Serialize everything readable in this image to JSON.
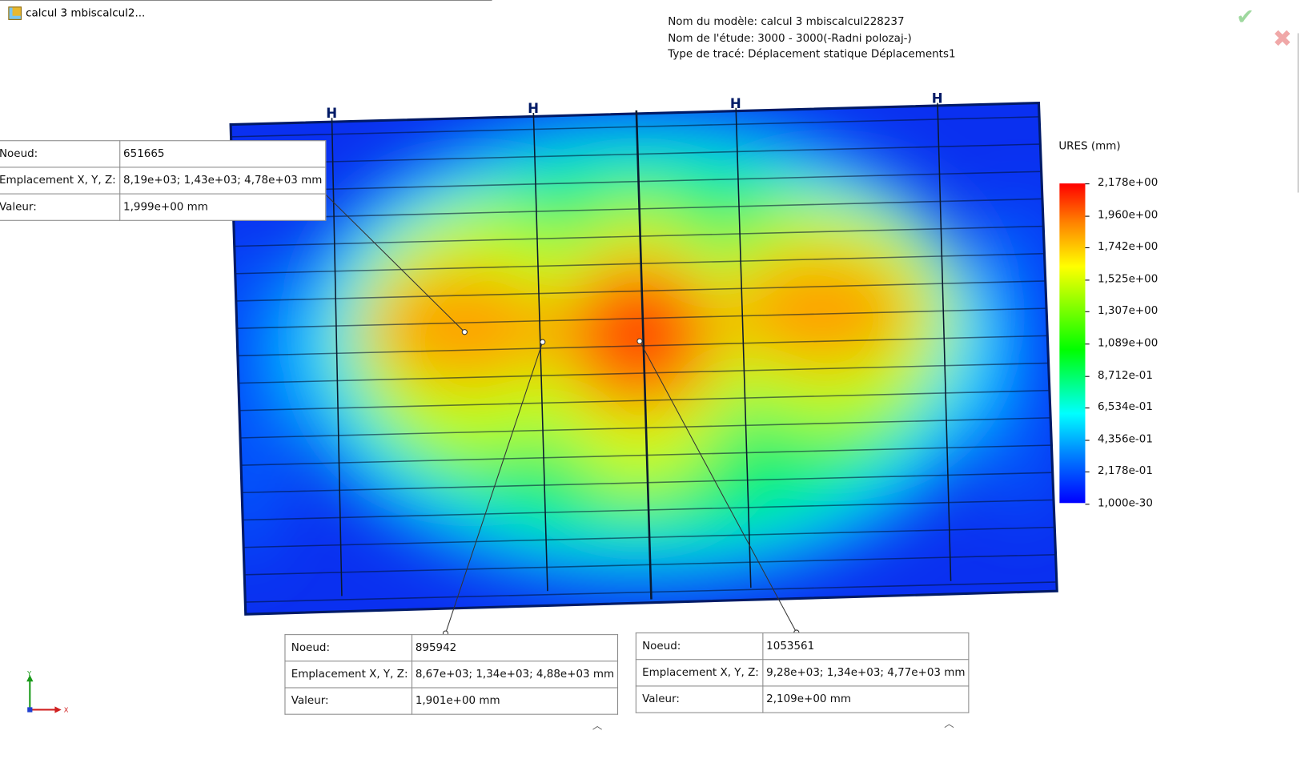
{
  "window": {
    "tab_title": "calcul 3 mbiscalcul2..."
  },
  "info": {
    "model": "Nom du modèle: calcul 3 mbiscalcul228237",
    "study": "Nom de l'étude: 3000 - 3000(-Radni polozaj-)",
    "plot": "Type de tracé: Déplacement statique Déplacements1"
  },
  "actions": {
    "ok_icon": "check-icon",
    "cancel_icon": "close-icon",
    "ok": "✔",
    "cancel": "✖"
  },
  "legend": {
    "title": "URES (mm)",
    "labels": [
      "2,178e+00",
      "1,960e+00",
      "1,742e+00",
      "1,525e+00",
      "1,307e+00",
      "1,089e+00",
      "8,712e-01",
      "6,534e-01",
      "4,356e-01",
      "2,178e-01",
      "1,000e-30"
    ],
    "colors": [
      "#ff0000",
      "#ffff00",
      "#00ff00",
      "#00ffff",
      "#0000ff"
    ]
  },
  "probes": [
    {
      "node_label": "Noeud:",
      "node": "651665",
      "loc_label": "Emplacement X, Y, Z:",
      "loc": "8,19e+03; 1,43e+03; 4,78e+03 mm",
      "val_label": "Valeur:",
      "val": "1,999e+00 mm"
    },
    {
      "node_label": "Noeud:",
      "node": "895942",
      "loc_label": "Emplacement X, Y, Z:",
      "loc": "8,67e+03; 1,34e+03; 4,88e+03 mm",
      "val_label": "Valeur:",
      "val": "1,901e+00 mm"
    },
    {
      "node_label": "Noeud:",
      "node": "1053561",
      "loc_label": "Emplacement X, Y, Z:",
      "loc": "9,28e+03; 1,34e+03; 4,77e+03 mm",
      "val_label": "Valeur:",
      "val": "2,109e+00 mm"
    }
  ],
  "triad": {
    "x": "X",
    "y": "Y"
  }
}
